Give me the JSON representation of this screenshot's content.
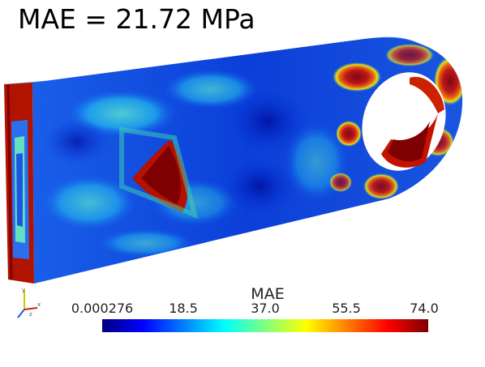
{
  "title": "MAE = 21.72 MPa",
  "colorbar": {
    "title": "MAE",
    "min_label": "0.000276",
    "tick_labels": [
      "0.000276",
      "18.5",
      "37.0",
      "55.5",
      "74.0"
    ],
    "colormap": [
      "#00007f",
      "#0000ff",
      "#007fff",
      "#00ffff",
      "#7fff7f",
      "#ffff00",
      "#ff7f00",
      "#ff0000",
      "#7f0000"
    ]
  },
  "axes": {
    "x_label": "x",
    "y_label": "y",
    "z_label": "z"
  }
}
